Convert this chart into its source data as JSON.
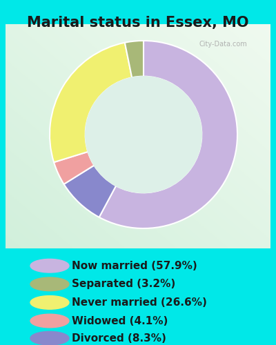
{
  "title": "Marital status in Essex, MO",
  "slices": [
    57.9,
    8.3,
    4.1,
    26.6,
    3.2
  ],
  "labels": [
    "Now married (57.9%)",
    "Separated (3.2%)",
    "Never married (26.6%)",
    "Widowed (4.1%)",
    "Divorced (8.3%)"
  ],
  "legend_colors": [
    "#c8b4e0",
    "#a8b878",
    "#f0f070",
    "#f0a0a0",
    "#8888cc"
  ],
  "slice_colors": [
    "#c8b4e0",
    "#8888cc",
    "#f0a0a0",
    "#f0f070",
    "#a8b878"
  ],
  "bg_cyan": "#00e8e8",
  "chart_panel_color": "#e8f5ee",
  "title_fontsize": 15,
  "legend_fontsize": 11,
  "watermark": "City-Data.com"
}
